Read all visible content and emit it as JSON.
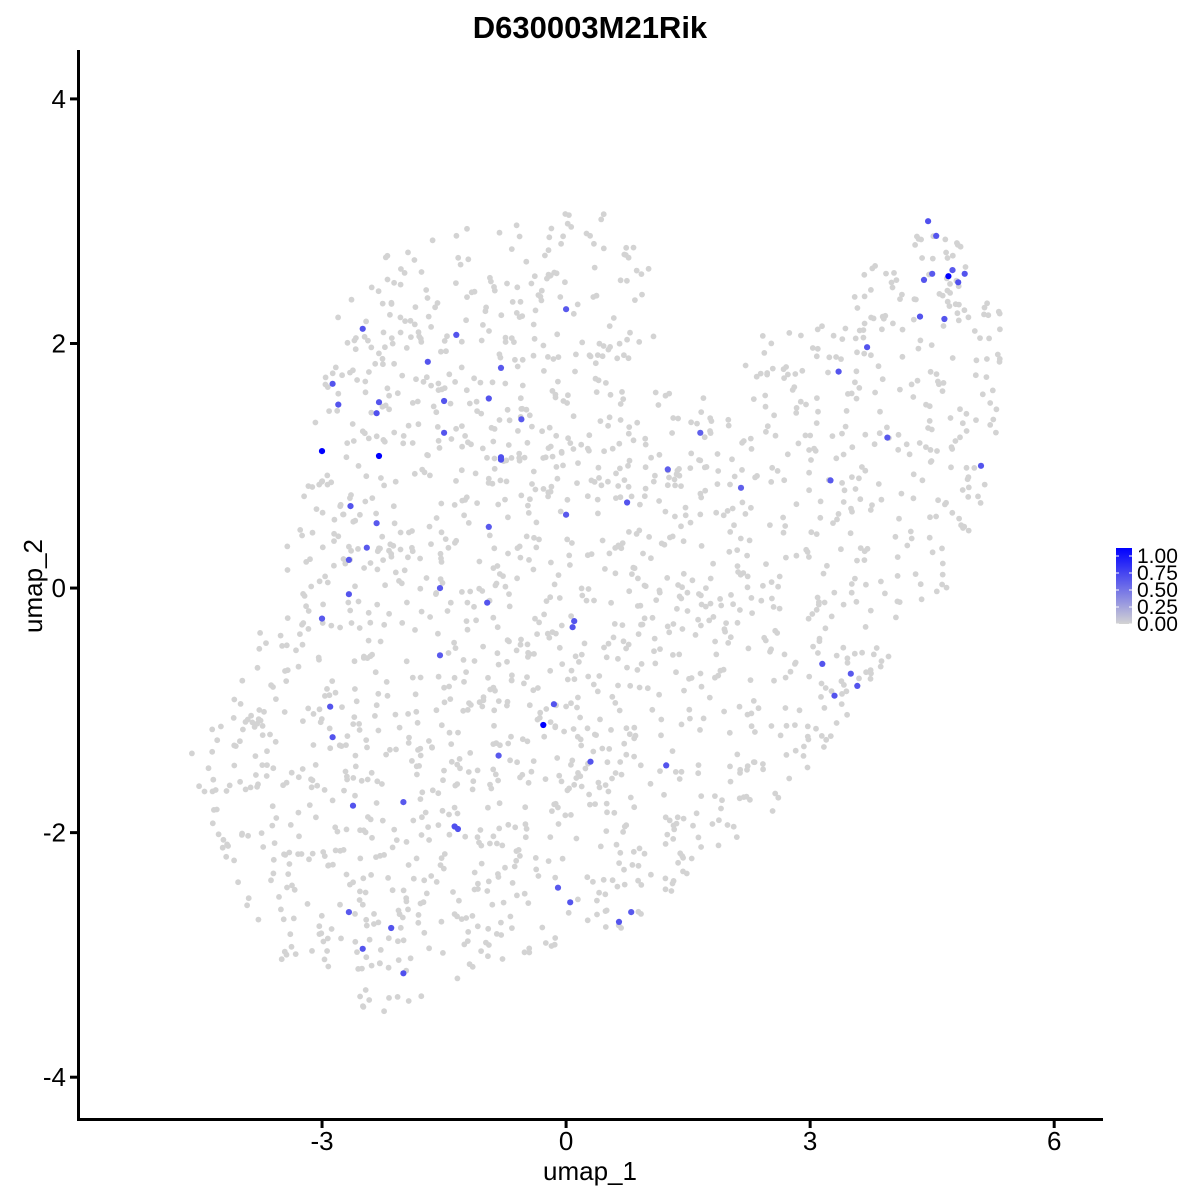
{
  "chart_data": {
    "type": "scatter",
    "title": "D630003M21Rik",
    "xlabel": "umap_1",
    "ylabel": "umap_2",
    "xlim": [
      -6.0,
      6.6
    ],
    "ylim": [
      -4.35,
      4.4
    ],
    "x_ticks": [
      -3,
      0,
      3,
      6
    ],
    "y_ticks": [
      -4,
      -2,
      0,
      2,
      4
    ],
    "grid": false,
    "legend": {
      "position": "right",
      "labels": [
        "1.00",
        "0.75",
        "0.50",
        "0.25",
        "0.00"
      ],
      "values": [
        1.0,
        0.75,
        0.5,
        0.25,
        0.0
      ],
      "colors": {
        "low": "#D3D3D3",
        "high": "#0000FF"
      }
    },
    "expressing_points": [
      {
        "x": 4.45,
        "y": 3.0,
        "v": 0.62
      },
      {
        "x": 4.55,
        "y": 2.88,
        "v": 0.6
      },
      {
        "x": 4.7,
        "y": 2.55,
        "v": 1.0
      },
      {
        "x": 4.75,
        "y": 2.6,
        "v": 0.58
      },
      {
        "x": 4.9,
        "y": 2.57,
        "v": 0.6
      },
      {
        "x": 4.4,
        "y": 2.52,
        "v": 0.6
      },
      {
        "x": 4.5,
        "y": 2.57,
        "v": 0.58
      },
      {
        "x": 4.82,
        "y": 2.5,
        "v": 0.62
      },
      {
        "x": 4.35,
        "y": 2.22,
        "v": 0.6
      },
      {
        "x": 4.65,
        "y": 2.2,
        "v": 0.6
      },
      {
        "x": 3.7,
        "y": 1.97,
        "v": 0.6
      },
      {
        "x": 3.35,
        "y": 1.77,
        "v": 0.6
      },
      {
        "x": 3.95,
        "y": 1.23,
        "v": 0.58
      },
      {
        "x": 5.1,
        "y": 1.0,
        "v": 0.6
      },
      {
        "x": 3.25,
        "y": 0.88,
        "v": 0.58
      },
      {
        "x": 3.15,
        "y": -0.62,
        "v": 0.6
      },
      {
        "x": 3.5,
        "y": -0.7,
        "v": 0.58
      },
      {
        "x": 3.58,
        "y": -0.8,
        "v": 0.6
      },
      {
        "x": 3.3,
        "y": -0.88,
        "v": 0.6
      },
      {
        "x": 2.15,
        "y": 0.82,
        "v": 0.55
      },
      {
        "x": 1.65,
        "y": 1.27,
        "v": 0.55
      },
      {
        "x": 1.25,
        "y": 0.97,
        "v": 0.55
      },
      {
        "x": 0.75,
        "y": 0.7,
        "v": 0.6
      },
      {
        "x": 0.0,
        "y": 2.28,
        "v": 0.58
      },
      {
        "x": -0.8,
        "y": 1.8,
        "v": 0.58
      },
      {
        "x": -0.55,
        "y": 1.38,
        "v": 0.58
      },
      {
        "x": -1.35,
        "y": 2.07,
        "v": 0.6
      },
      {
        "x": -1.7,
        "y": 1.85,
        "v": 0.6
      },
      {
        "x": -1.5,
        "y": 1.53,
        "v": 0.6
      },
      {
        "x": -0.95,
        "y": 1.55,
        "v": 0.6
      },
      {
        "x": -0.8,
        "y": 1.07,
        "v": 0.62
      },
      {
        "x": -0.8,
        "y": 1.05,
        "v": 0.62
      },
      {
        "x": -1.5,
        "y": 1.27,
        "v": 0.6
      },
      {
        "x": -2.5,
        "y": 2.12,
        "v": 0.6
      },
      {
        "x": -2.87,
        "y": 1.67,
        "v": 0.6
      },
      {
        "x": -2.8,
        "y": 1.5,
        "v": 0.6
      },
      {
        "x": -2.3,
        "y": 1.52,
        "v": 0.6
      },
      {
        "x": -2.33,
        "y": 1.43,
        "v": 0.62
      },
      {
        "x": -3.0,
        "y": 1.12,
        "v": 1.0
      },
      {
        "x": -2.3,
        "y": 1.08,
        "v": 1.0
      },
      {
        "x": -2.65,
        "y": 0.67,
        "v": 0.6
      },
      {
        "x": -2.33,
        "y": 0.53,
        "v": 0.58
      },
      {
        "x": -2.45,
        "y": 0.33,
        "v": 0.58
      },
      {
        "x": -2.67,
        "y": 0.23,
        "v": 0.58
      },
      {
        "x": -2.67,
        "y": -0.05,
        "v": 0.6
      },
      {
        "x": -3.0,
        "y": -0.25,
        "v": 0.58
      },
      {
        "x": -0.95,
        "y": 0.5,
        "v": 0.58
      },
      {
        "x": 0.0,
        "y": 0.6,
        "v": 0.58
      },
      {
        "x": -1.55,
        "y": 0.0,
        "v": 0.58
      },
      {
        "x": -0.97,
        "y": -0.12,
        "v": 0.6
      },
      {
        "x": 0.1,
        "y": -0.27,
        "v": 0.6
      },
      {
        "x": 0.08,
        "y": -0.32,
        "v": 0.6
      },
      {
        "x": -1.55,
        "y": -0.55,
        "v": 0.58
      },
      {
        "x": -2.9,
        "y": -0.97,
        "v": 0.6
      },
      {
        "x": -2.87,
        "y": -1.22,
        "v": 0.6
      },
      {
        "x": -0.15,
        "y": -0.95,
        "v": 0.6
      },
      {
        "x": -0.28,
        "y": -1.12,
        "v": 1.0
      },
      {
        "x": -0.83,
        "y": -1.37,
        "v": 0.58
      },
      {
        "x": 0.3,
        "y": -1.42,
        "v": 0.6
      },
      {
        "x": 1.23,
        "y": -1.45,
        "v": 0.6
      },
      {
        "x": -2.0,
        "y": -1.75,
        "v": 0.58
      },
      {
        "x": -2.62,
        "y": -1.78,
        "v": 0.6
      },
      {
        "x": -1.33,
        "y": -1.97,
        "v": 0.62
      },
      {
        "x": -1.37,
        "y": -1.95,
        "v": 0.62
      },
      {
        "x": -0.1,
        "y": -2.45,
        "v": 0.58
      },
      {
        "x": 0.05,
        "y": -2.57,
        "v": 0.6
      },
      {
        "x": 0.65,
        "y": -2.73,
        "v": 0.6
      },
      {
        "x": 0.8,
        "y": -2.65,
        "v": 0.58
      },
      {
        "x": -2.67,
        "y": -2.65,
        "v": 0.58
      },
      {
        "x": -2.15,
        "y": -2.78,
        "v": 0.6
      },
      {
        "x": -2.5,
        "y": -2.95,
        "v": 0.6
      },
      {
        "x": -2.0,
        "y": -3.15,
        "v": 0.62
      }
    ]
  }
}
